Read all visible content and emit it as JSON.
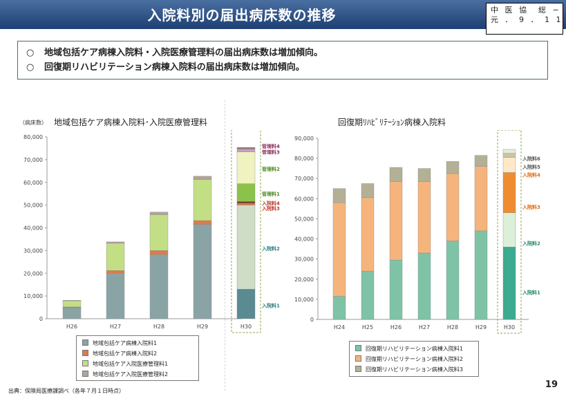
{
  "header": {
    "title": "入院料別の届出病床数の推移"
  },
  "doc_code": {
    "line1": "中 医 協　総 − 1",
    "line2": "元 ． 9 ． 1 1"
  },
  "summary": {
    "bullet": "○",
    "lines": [
      "地域包括ケア病棟入院料・入院医療管理料の届出病床数は増加傾向。",
      "回復期リハビリテーション病棟入院料の届出病床数は増加傾向。"
    ]
  },
  "footer": {
    "source": "出典：保険局医療課調べ（各年７月１日時点）",
    "page_number": "19"
  },
  "chart_data": [
    {
      "type": "bar",
      "stacked": true,
      "title": "地域包括ケア病棟入院料･入院医療管理料",
      "ylabel": "（病床数）",
      "ylim": [
        0,
        80000
      ],
      "ytick_step": 10000,
      "yticks": [
        "0",
        "10,000",
        "20,000",
        "30,000",
        "40,000",
        "50,000",
        "60,000",
        "70,000",
        "80,000"
      ],
      "categories": [
        "H26",
        "H27",
        "H28",
        "H29",
        "H30"
      ],
      "series": [
        {
          "name": "地域包括ケア病棟入院料1",
          "color": "#8aa4a6",
          "values": [
            4800,
            20000,
            28200,
            41500,
            0
          ]
        },
        {
          "name": "地域包括ケア病棟入院料2",
          "color": "#e07a4a",
          "values": [
            400,
            1200,
            1800,
            1700,
            0
          ]
        },
        {
          "name": "地域包括ケア入院医療管理料1",
          "color": "#c3df85",
          "values": [
            2700,
            12000,
            15800,
            18000,
            0
          ]
        },
        {
          "name": "地域包括ケア入院医療管理料2",
          "color": "#b3a39a",
          "values": [
            200,
            600,
            1100,
            1500,
            0
          ]
        }
      ],
      "h30_breakdown": [
        {
          "name": "入院料1",
          "color": "#5a8a92",
          "value": 13000
        },
        {
          "name": "入院料2",
          "color": "#cfdcc6",
          "value": 37000
        },
        {
          "name": "入院料3",
          "color": "#e07a4a",
          "value": 800
        },
        {
          "name": "入院料4",
          "color": "#7a3a2a",
          "value": 800
        },
        {
          "name": "管理料1",
          "color": "#8bc34a",
          "value": 7800
        },
        {
          "name": "管理料2",
          "color": "#f0f2c0",
          "value": 14000
        },
        {
          "name": "管理料3",
          "color": "#c8a0c8",
          "value": 1200
        },
        {
          "name": "管理料4",
          "color": "#9e7a7a",
          "value": 800
        }
      ],
      "h30_labels": [
        {
          "text": "入院料1",
          "value": 6000,
          "color": "#2e7d7d"
        },
        {
          "text": "入院料2",
          "value": 31000,
          "color": "#2e7d7d"
        },
        {
          "text": "入院料3",
          "value": 48700,
          "color": "#c0392b"
        },
        {
          "text": "入院料4",
          "value": 51000,
          "color": "#c0392b"
        },
        {
          "text": "管理料1",
          "value": 55000,
          "color": "#4c8a1e"
        },
        {
          "text": "管理料2",
          "value": 66000,
          "color": "#4c8a1e"
        },
        {
          "text": "管理料3",
          "value": 73500,
          "color": "#8e2f5e"
        },
        {
          "text": "管理料4",
          "value": 76000,
          "color": "#8e2f5e"
        }
      ]
    },
    {
      "type": "bar",
      "stacked": true,
      "title": "回復期ﾘﾊﾋﾞﾘﾃｰｼｮﾝ病棟入院料",
      "ylim": [
        0,
        90000
      ],
      "ytick_step": 10000,
      "yticks": [
        "0",
        "10,000",
        "20,000",
        "30,000",
        "40,000",
        "50,000",
        "60,000",
        "70,000",
        "80,000",
        "90,000"
      ],
      "categories": [
        "H24",
        "H25",
        "H26",
        "H27",
        "H28",
        "H29",
        "H30"
      ],
      "series": [
        {
          "name": "回復期リハビリテーション病棟入院料1",
          "color": "#7fc3a6",
          "values": [
            11500,
            24000,
            29500,
            33000,
            39000,
            44000,
            0
          ]
        },
        {
          "name": "回復期リハビリテーション病棟入院料2",
          "color": "#f5b47c",
          "values": [
            46500,
            36500,
            39000,
            35500,
            33500,
            32000,
            0
          ]
        },
        {
          "name": "回復期リハビリテーション病棟入院料3",
          "color": "#b3b096",
          "values": [
            7000,
            7000,
            7000,
            6500,
            6000,
            5500,
            0
          ]
        }
      ],
      "h30_breakdown": [
        {
          "name": "入院料1",
          "color": "#3aab8f",
          "value": 36000
        },
        {
          "name": "入院料2",
          "color": "#dcefd9",
          "value": 17000
        },
        {
          "name": "入院料3",
          "color": "#f08c30",
          "value": 20000
        },
        {
          "name": "入院料4",
          "color": "#ffe8c8",
          "value": 7500
        },
        {
          "name": "入院料5",
          "color": "#c9c7a8",
          "value": 2000
        },
        {
          "name": "入院料6",
          "color": "#e8ecd8",
          "value": 2000
        }
      ],
      "h30_labels": [
        {
          "text": "入院料1",
          "value": 13500,
          "color": "#1f8a6a"
        },
        {
          "text": "入院料2",
          "value": 38000,
          "color": "#1f8a6a"
        },
        {
          "text": "入院料3",
          "value": 56000,
          "color": "#e06b10"
        },
        {
          "text": "入院料4",
          "value": 72000,
          "color": "#e06b10"
        },
        {
          "text": "入院料5",
          "value": 76000,
          "color": "#555555"
        },
        {
          "text": "入院料6",
          "value": 80000,
          "color": "#555555"
        }
      ]
    }
  ]
}
